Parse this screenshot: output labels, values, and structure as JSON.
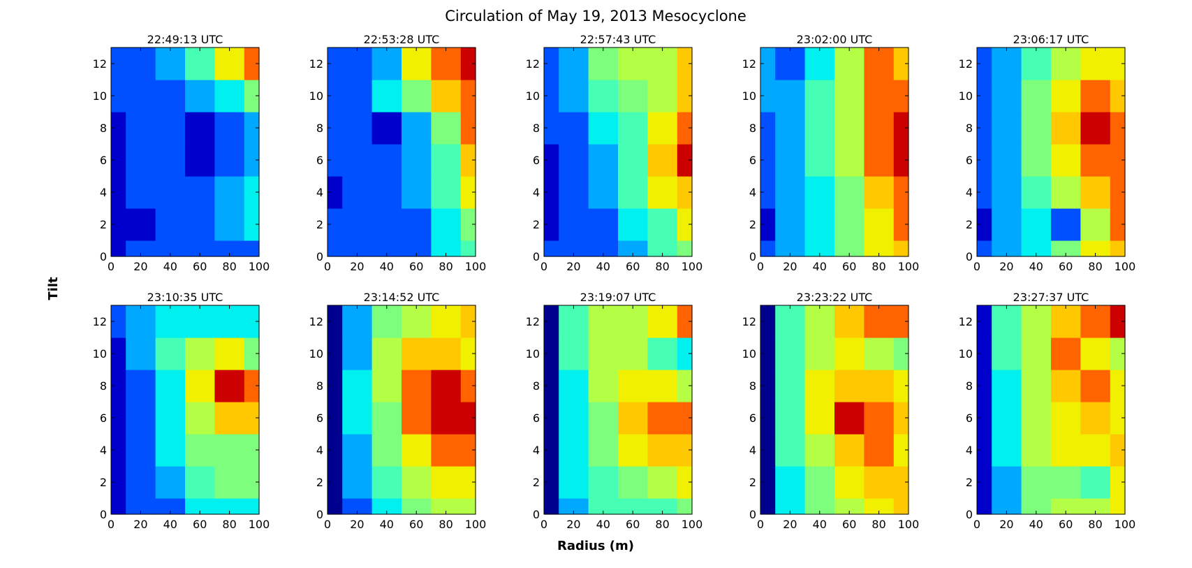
{
  "figure": {
    "title": "Circulation of May 19, 2013 Mesocyclone",
    "xlabel": "Radius (m)",
    "ylabel": "Tilt"
  },
  "chart_data": {
    "type": "heatmap",
    "title": "Circulation of May 19, 2013 Mesocyclone",
    "xlabel": "Radius (m)",
    "ylabel": "Tilt",
    "xlim": [
      0,
      100
    ],
    "ylim": [
      0,
      13
    ],
    "xticks": [
      0,
      20,
      40,
      60,
      80,
      100
    ],
    "yticks": [
      0,
      2,
      4,
      6,
      8,
      10,
      12
    ],
    "grid": false,
    "legend": "none",
    "colormap": [
      "#00008f",
      "#0000cd",
      "#0050ff",
      "#00a8ff",
      "#00f0f0",
      "#46ffb4",
      "#7dff7d",
      "#b4ff46",
      "#f0f000",
      "#ffc800",
      "#ff6400",
      "#cd0000",
      "#8f0000"
    ],
    "x": [
      0,
      20,
      40,
      60,
      80,
      100
    ],
    "y": [
      0,
      2,
      4,
      6,
      8,
      10,
      12
    ],
    "panels": [
      {
        "title": "22:49:13 UTC",
        "z": [
          [
            1,
            2,
            2,
            2,
            2,
            2
          ],
          [
            1,
            1,
            2,
            2,
            3,
            4
          ],
          [
            1,
            2,
            2,
            2,
            3,
            4
          ],
          [
            1,
            2,
            2,
            1,
            2,
            3
          ],
          [
            1,
            2,
            2,
            1,
            2,
            3
          ],
          [
            2,
            2,
            2,
            3,
            4,
            6
          ],
          [
            2,
            2,
            3,
            5,
            8,
            10
          ]
        ]
      },
      {
        "title": "22:53:28 UTC",
        "z": [
          [
            2,
            2,
            2,
            2,
            4,
            5
          ],
          [
            2,
            2,
            2,
            2,
            4,
            6
          ],
          [
            1,
            2,
            2,
            3,
            5,
            8
          ],
          [
            2,
            2,
            2,
            3,
            5,
            9
          ],
          [
            2,
            2,
            1,
            3,
            6,
            10
          ],
          [
            2,
            2,
            4,
            6,
            9,
            10
          ],
          [
            2,
            2,
            3,
            8,
            10,
            11
          ]
        ]
      },
      {
        "title": "22:57:43 UTC",
        "z": [
          [
            2,
            2,
            2,
            3,
            5,
            6
          ],
          [
            1,
            2,
            2,
            4,
            5,
            8
          ],
          [
            1,
            2,
            3,
            5,
            8,
            9
          ],
          [
            1,
            2,
            3,
            5,
            9,
            11
          ],
          [
            2,
            2,
            4,
            5,
            8,
            10
          ],
          [
            2,
            3,
            5,
            6,
            7,
            9
          ],
          [
            2,
            3,
            6,
            7,
            7,
            9
          ]
        ]
      },
      {
        "title": "23:02:00 UTC",
        "z": [
          [
            2,
            3,
            4,
            6,
            8,
            9
          ],
          [
            1,
            3,
            4,
            6,
            8,
            10
          ],
          [
            2,
            3,
            4,
            6,
            9,
            10
          ],
          [
            2,
            3,
            5,
            7,
            10,
            11
          ],
          [
            2,
            3,
            5,
            7,
            10,
            11
          ],
          [
            3,
            3,
            5,
            7,
            10,
            10
          ],
          [
            3,
            2,
            4,
            7,
            10,
            9
          ]
        ]
      },
      {
        "title": "23:06:17 UTC",
        "z": [
          [
            2,
            3,
            4,
            6,
            8,
            9
          ],
          [
            1,
            3,
            4,
            2,
            7,
            10
          ],
          [
            2,
            3,
            5,
            7,
            9,
            10
          ],
          [
            2,
            3,
            6,
            8,
            10,
            10
          ],
          [
            2,
            3,
            6,
            9,
            11,
            10
          ],
          [
            2,
            3,
            6,
            8,
            10,
            9
          ],
          [
            2,
            3,
            5,
            7,
            8,
            8
          ]
        ]
      },
      {
        "title": "23:10:35 UTC",
        "z": [
          [
            1,
            2,
            2,
            4,
            4,
            4
          ],
          [
            1,
            2,
            3,
            5,
            6,
            6
          ],
          [
            1,
            2,
            4,
            6,
            6,
            6
          ],
          [
            1,
            2,
            4,
            7,
            9,
            9
          ],
          [
            1,
            2,
            4,
            8,
            11,
            10
          ],
          [
            1,
            3,
            5,
            7,
            8,
            6
          ],
          [
            2,
            3,
            4,
            4,
            4,
            4
          ]
        ]
      },
      {
        "title": "23:14:52 UTC",
        "z": [
          [
            0,
            2,
            4,
            6,
            7,
            7
          ],
          [
            0,
            3,
            5,
            7,
            8,
            8
          ],
          [
            0,
            3,
            6,
            8,
            10,
            10
          ],
          [
            0,
            4,
            6,
            10,
            11,
            11
          ],
          [
            0,
            4,
            7,
            10,
            11,
            10
          ],
          [
            0,
            3,
            7,
            9,
            9,
            8
          ],
          [
            0,
            3,
            6,
            7,
            8,
            9
          ]
        ]
      },
      {
        "title": "23:19:07 UTC",
        "z": [
          [
            0,
            3,
            5,
            5,
            5,
            6
          ],
          [
            0,
            4,
            5,
            6,
            7,
            8
          ],
          [
            0,
            4,
            6,
            8,
            9,
            9
          ],
          [
            0,
            4,
            6,
            9,
            10,
            10
          ],
          [
            0,
            4,
            7,
            8,
            8,
            7
          ],
          [
            0,
            5,
            7,
            7,
            5,
            4
          ],
          [
            0,
            5,
            7,
            7,
            8,
            10
          ]
        ]
      },
      {
        "title": "23:23:22 UTC",
        "z": [
          [
            0,
            4,
            6,
            7,
            8,
            9
          ],
          [
            0,
            4,
            6,
            8,
            9,
            9
          ],
          [
            0,
            5,
            7,
            9,
            10,
            8
          ],
          [
            0,
            5,
            8,
            11,
            10,
            9
          ],
          [
            0,
            5,
            8,
            9,
            9,
            8
          ],
          [
            0,
            5,
            7,
            8,
            7,
            6
          ],
          [
            0,
            5,
            7,
            9,
            10,
            10
          ]
        ]
      },
      {
        "title": "23:27:37 UTC",
        "z": [
          [
            1,
            3,
            6,
            7,
            7,
            8
          ],
          [
            1,
            3,
            6,
            6,
            5,
            8
          ],
          [
            1,
            4,
            7,
            8,
            8,
            9
          ],
          [
            1,
            4,
            7,
            8,
            9,
            8
          ],
          [
            1,
            4,
            7,
            9,
            10,
            8
          ],
          [
            1,
            5,
            7,
            10,
            8,
            7
          ],
          [
            1,
            5,
            7,
            9,
            10,
            11
          ]
        ]
      }
    ]
  }
}
